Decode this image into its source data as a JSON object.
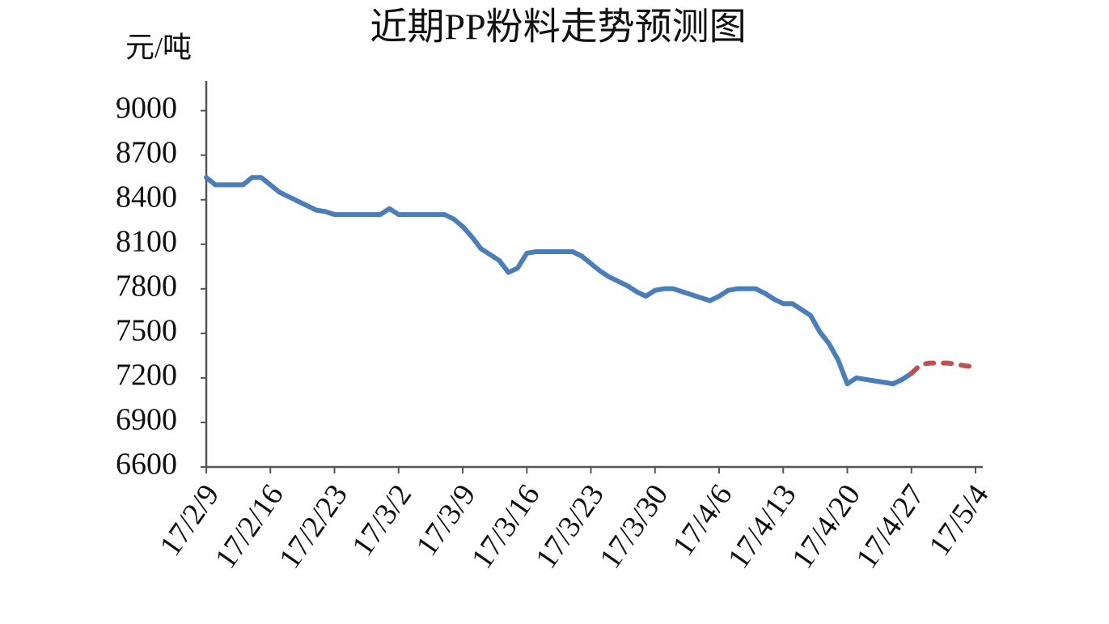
{
  "chart_data": {
    "type": "line",
    "title": "近期PP粉料走势预测图",
    "y_label": "元/吨",
    "categories": [
      "17/2/9",
      null,
      null,
      null,
      null,
      null,
      null,
      "17/2/16",
      null,
      null,
      null,
      null,
      null,
      null,
      "17/2/23",
      null,
      null,
      null,
      null,
      null,
      null,
      "17/3/2",
      null,
      null,
      null,
      null,
      null,
      null,
      "17/3/9",
      null,
      null,
      null,
      null,
      null,
      null,
      "17/3/16",
      null,
      null,
      null,
      null,
      null,
      null,
      "17/3/23",
      null,
      null,
      null,
      null,
      null,
      null,
      "17/3/30",
      null,
      null,
      null,
      null,
      null,
      null,
      "17/4/6",
      null,
      null,
      null,
      null,
      null,
      null,
      "17/4/13",
      null,
      null,
      null,
      null,
      null,
      null,
      "17/4/20",
      null,
      null,
      null,
      null,
      null,
      null,
      "17/4/27",
      null,
      null,
      null,
      null,
      null,
      null,
      "17/5/4"
    ],
    "series": [
      {
        "color": "#4a7ebb",
        "dashed": false,
        "values": [
          8550,
          8500,
          8500,
          8500,
          8500,
          8550,
          8550,
          8500,
          8450,
          8420,
          8390,
          8360,
          8330,
          8320,
          8300,
          8300,
          8300,
          8300,
          8300,
          8300,
          8340,
          8300,
          8300,
          8300,
          8300,
          8300,
          8300,
          8270,
          8220,
          8150,
          8070,
          8030,
          7990,
          7910,
          7940,
          8040,
          8050,
          8050,
          8050,
          8050,
          8050,
          8020,
          7970,
          7920,
          7880,
          7850,
          7820,
          7780,
          7750,
          7790,
          7800,
          7800,
          7780,
          7760,
          7740,
          7720,
          7750,
          7790,
          7800,
          7800,
          7800,
          7770,
          7730,
          7700,
          7700,
          7660,
          7620,
          7510,
          7430,
          7320,
          7160,
          7200,
          7190,
          7180,
          7170,
          7160,
          7190,
          7230,
          null,
          null,
          null,
          null,
          null,
          null,
          null
        ]
      },
      {
        "color": "#c0504d",
        "dashed": true,
        "values": [
          null,
          null,
          null,
          null,
          null,
          null,
          null,
          null,
          null,
          null,
          null,
          null,
          null,
          null,
          null,
          null,
          null,
          null,
          null,
          null,
          null,
          null,
          null,
          null,
          null,
          null,
          null,
          null,
          null,
          null,
          null,
          null,
          null,
          null,
          null,
          null,
          null,
          null,
          null,
          null,
          null,
          null,
          null,
          null,
          null,
          null,
          null,
          null,
          null,
          null,
          null,
          null,
          null,
          null,
          null,
          null,
          null,
          null,
          null,
          null,
          null,
          null,
          null,
          null,
          null,
          null,
          null,
          null,
          null,
          null,
          null,
          null,
          null,
          null,
          null,
          null,
          null,
          7230,
          7290,
          7300,
          7300,
          7300,
          7290,
          7280,
          7275
        ]
      }
    ],
    "ylim": [
      6600,
      9200
    ],
    "yticks": [
      6600,
      6900,
      7200,
      7500,
      7800,
      8100,
      8400,
      8700,
      9000
    ],
    "grid": false
  }
}
